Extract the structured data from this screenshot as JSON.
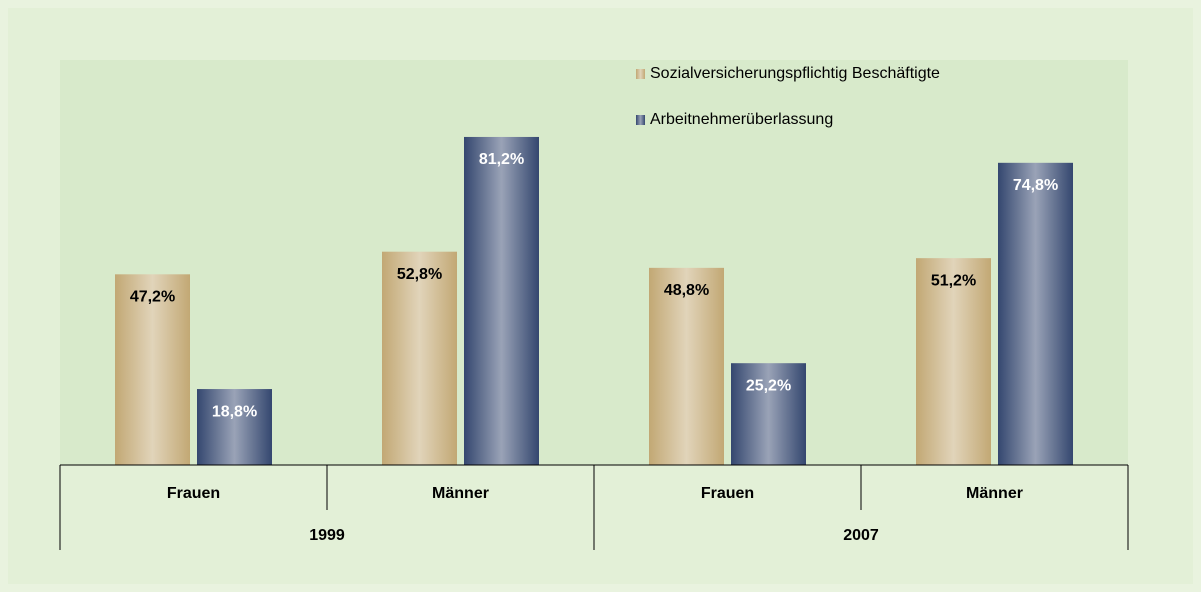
{
  "chart_data": {
    "type": "bar",
    "categories": [
      "Frauen",
      "Männer",
      "Frauen",
      "Männer"
    ],
    "groups": [
      "1999",
      "2007"
    ],
    "series": [
      {
        "name": "Sozialversicherungspflichtig Beschäftigte",
        "color": "#c2a874",
        "label_color": "#000000",
        "values": [
          47.2,
          52.8,
          48.8,
          51.2
        ],
        "value_labels": [
          "47,2%",
          "52,8%",
          "48,8%",
          "51,2%"
        ]
      },
      {
        "name": "Arbeitnehmerüberlassung",
        "color": "#34476f",
        "label_color": "#ffffff",
        "values": [
          18.8,
          81.2,
          25.2,
          74.8
        ],
        "value_labels": [
          "18,8%",
          "81,2%",
          "25,2%",
          "74,8%"
        ]
      }
    ],
    "ylim": [
      0,
      100
    ]
  }
}
